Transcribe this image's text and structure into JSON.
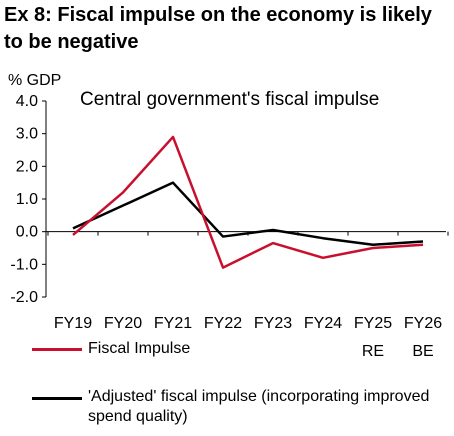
{
  "exhibit": {
    "title": "Ex 8: Fiscal impulse on the economy is likely to be negative"
  },
  "chart_data": {
    "type": "line",
    "title": "Central government's fiscal impulse",
    "ylabel": "% GDP",
    "xlabel": "",
    "ylim": [
      -2.0,
      4.0
    ],
    "yticks": [
      "4.0",
      "3.0",
      "2.0",
      "1.0",
      "0.0",
      "-1.0",
      "-2.0"
    ],
    "categories": [
      "FY19",
      "FY20",
      "FY21",
      "FY22",
      "FY23",
      "FY24",
      "FY25",
      "FY26"
    ],
    "category_sublabels": [
      "",
      "",
      "",
      "",
      "",
      "",
      "RE",
      "BE"
    ],
    "grid": false,
    "legend_position": "bottom",
    "series": [
      {
        "name": "Fiscal Impulse",
        "color": "#c8102e",
        "values": [
          -0.1,
          1.2,
          2.9,
          -1.1,
          -0.35,
          -0.8,
          -0.5,
          -0.4
        ]
      },
      {
        "name": "'Adjusted' fiscal impulse (incorporating improved spend quality)",
        "color": "#000000",
        "values": [
          0.1,
          0.8,
          1.5,
          -0.15,
          0.05,
          -0.2,
          -0.4,
          -0.3
        ]
      }
    ]
  }
}
